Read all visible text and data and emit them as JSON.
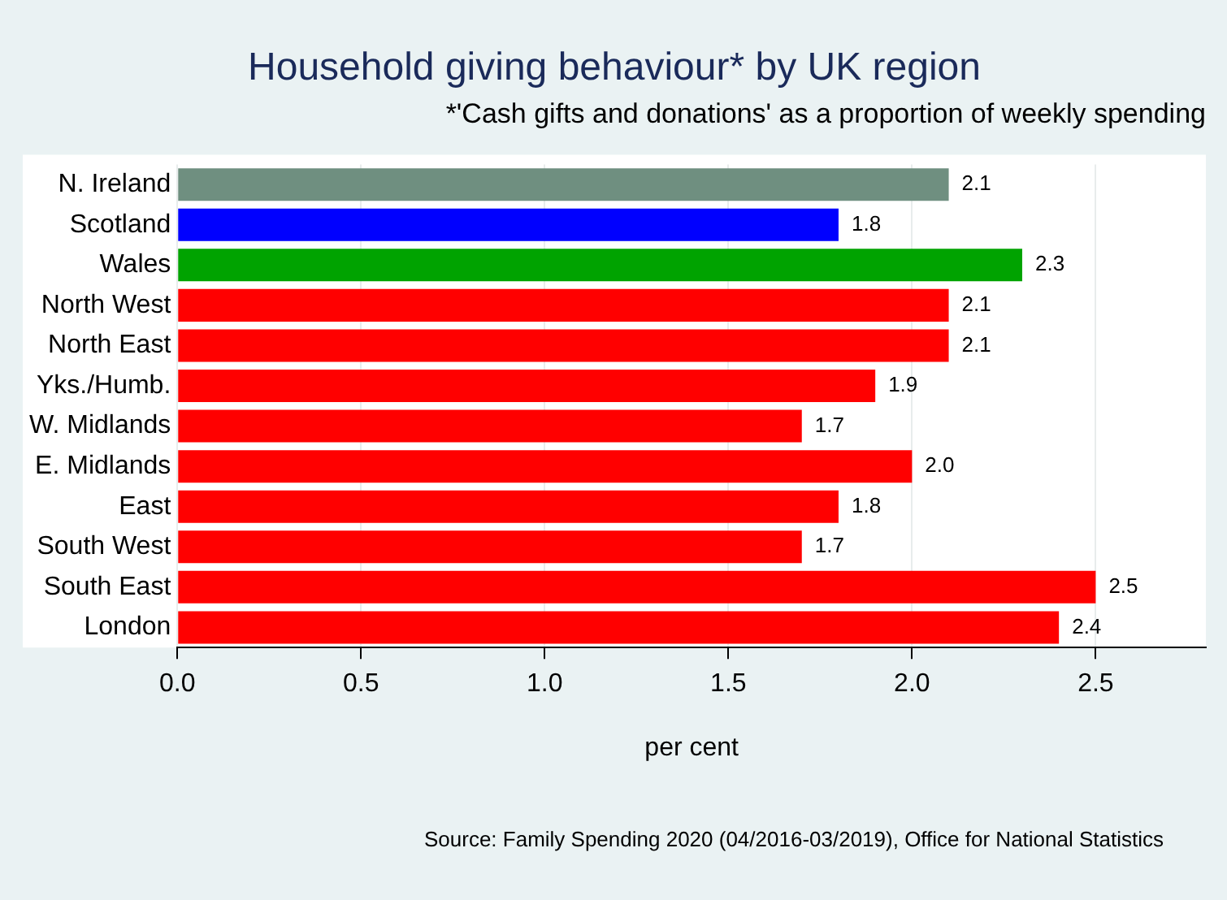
{
  "chart_data": {
    "type": "bar",
    "orientation": "horizontal",
    "title": "Household giving behaviour* by UK region",
    "subtitle": "*'Cash gifts and donations' as a proportion of weekly spending",
    "xlabel": "per cent",
    "categories": [
      "N. Ireland",
      "Scotland",
      "Wales",
      "North West",
      "North East",
      "Yks./Humb.",
      "W. Midlands",
      "E. Midlands",
      "East",
      "South West",
      "South East",
      "London"
    ],
    "values": [
      2.1,
      1.8,
      2.3,
      2.1,
      2.1,
      1.9,
      1.7,
      2.0,
      1.8,
      1.7,
      2.5,
      2.4
    ],
    "colors": [
      "#6f8f80",
      "#0000ff",
      "#00a300",
      "#ff0000",
      "#ff0000",
      "#ff0000",
      "#ff0000",
      "#ff0000",
      "#ff0000",
      "#ff0000",
      "#ff0000",
      "#ff0000"
    ],
    "xlim": [
      0,
      2.8
    ],
    "xticks": [
      {
        "value": 0,
        "label": "0.0"
      },
      {
        "value": 0.5,
        "label": "0.5"
      },
      {
        "value": 1,
        "label": "1.0"
      },
      {
        "value": 1.5,
        "label": "1.5"
      },
      {
        "value": 2,
        "label": "2.0"
      },
      {
        "value": 2.5,
        "label": "2.5"
      }
    ],
    "value_labels": [
      "2.1",
      "1.8",
      "2.3",
      "2.1",
      "2.1",
      "1.9",
      "1.7",
      "2.0",
      "1.8",
      "1.7",
      "2.5",
      "2.4"
    ],
    "grid": "x",
    "legend": false,
    "annotations": [
      "Source: Family Spending 2020 (04/2016-03/2019), Office for National Statistics"
    ]
  }
}
